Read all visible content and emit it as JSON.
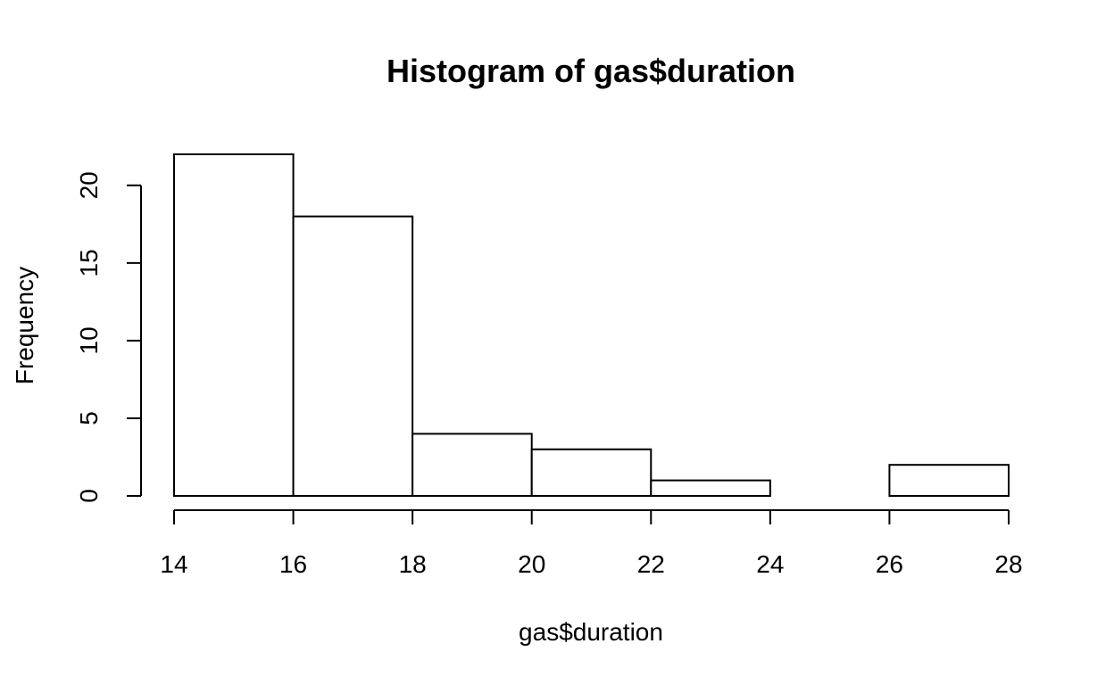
{
  "chart_data": {
    "type": "bar",
    "title": "Histogram of gas$duration",
    "xlabel": "gas$duration",
    "ylabel": "Frequency",
    "bins": [
      {
        "start": 14,
        "end": 16,
        "count": 22
      },
      {
        "start": 16,
        "end": 18,
        "count": 18
      },
      {
        "start": 18,
        "end": 20,
        "count": 4
      },
      {
        "start": 20,
        "end": 22,
        "count": 3
      },
      {
        "start": 22,
        "end": 24,
        "count": 1
      },
      {
        "start": 24,
        "end": 26,
        "count": 0
      },
      {
        "start": 26,
        "end": 28,
        "count": 2
      }
    ],
    "xlim": [
      14,
      28
    ],
    "ylim": [
      0,
      22
    ],
    "x_ticks": [
      14,
      16,
      18,
      20,
      22,
      24,
      26,
      28
    ],
    "y_ticks": [
      0,
      5,
      10,
      15,
      20
    ],
    "grid": false,
    "legend": "none",
    "colors": {
      "bar_fill": "#ffffff",
      "bar_stroke": "#000000"
    }
  }
}
